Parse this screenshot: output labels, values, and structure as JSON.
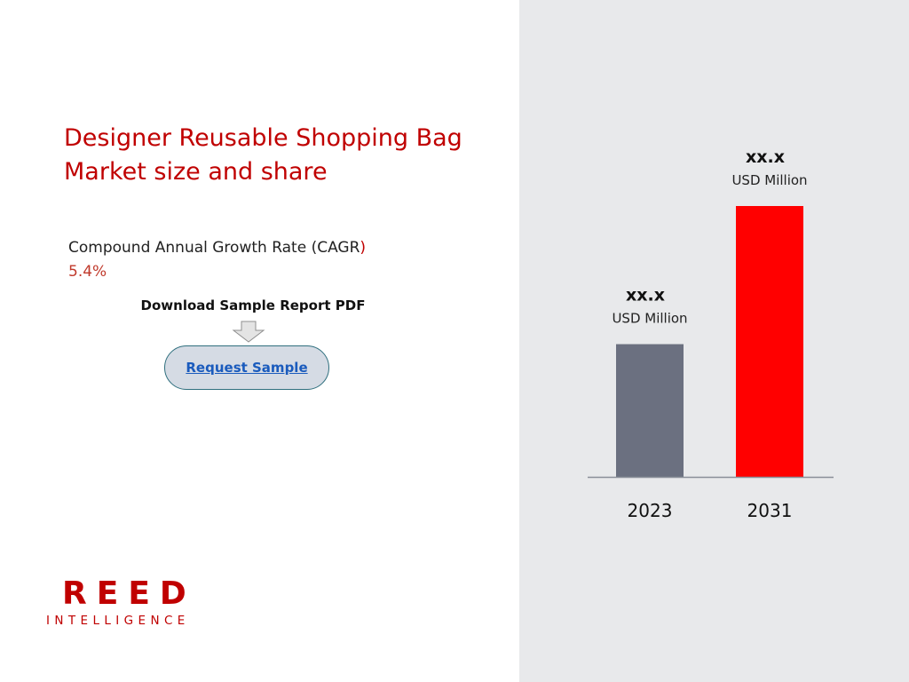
{
  "title": {
    "line1": "Designer Reusable Shopping Bag",
    "line2": "Market size and share"
  },
  "cagr": {
    "label": "Compound Annual Growth Rate (CAGR",
    "label_close": ")",
    "value": "5.4%"
  },
  "download": {
    "label": "Download Sample Report PDF"
  },
  "request_button": {
    "label": "Request Sample"
  },
  "logo": {
    "line1": "REED",
    "line2": "INTELLIGENCE"
  },
  "colors": {
    "accent": "#c00000",
    "bar_2023": "#6b7080",
    "bar_2031": "#ff0000",
    "panel_bg": "#e8e9eb"
  },
  "icons": {
    "arrow": "down-arrow-icon"
  },
  "chart_data": {
    "type": "bar",
    "categories": [
      "2023",
      "2031"
    ],
    "values": [
      49,
      100
    ],
    "value_labels": [
      {
        "value": "xx.x",
        "unit": "USD Million"
      },
      {
        "value": "xx.x",
        "unit": "USD Million"
      }
    ],
    "colors": [
      "#6b7080",
      "#ff0000"
    ],
    "ylim": [
      0,
      100
    ],
    "title": "",
    "xlabel": "",
    "ylabel": "",
    "grid": false
  }
}
